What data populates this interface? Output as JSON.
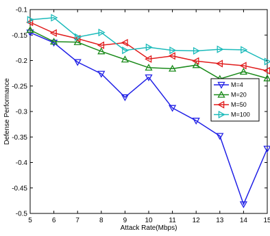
{
  "chart_data": {
    "type": "line",
    "xlabel": "Attack Rate(Mbps)",
    "ylabel": "Defense Performance",
    "xlim": [
      5,
      15
    ],
    "ylim": [
      -0.5,
      -0.1
    ],
    "xticks": [
      5,
      6,
      7,
      8,
      9,
      10,
      11,
      12,
      13,
      14,
      15
    ],
    "yticks": [
      -0.1,
      -0.15,
      -0.2,
      -0.25,
      -0.3,
      -0.35,
      -0.4,
      -0.45,
      -0.5
    ],
    "ytick_labels": [
      "-0.1",
      "-0.15",
      "-0.2",
      "-0.25",
      "-0.3",
      "-0.35",
      "-0.4",
      "-0.45",
      "-0.5"
    ],
    "grid": false,
    "legend_position": "right",
    "x": [
      5,
      6,
      7,
      8,
      9,
      10,
      11,
      12,
      13,
      14,
      15
    ],
    "series": [
      {
        "name": "M=4",
        "color": "#1f1fe6",
        "marker": "triangle-down",
        "values": [
          -0.145,
          -0.165,
          -0.203,
          -0.226,
          -0.272,
          -0.233,
          -0.293,
          -0.318,
          -0.348,
          -0.482,
          -0.373
        ]
      },
      {
        "name": "M=20",
        "color": "#1a8a1a",
        "marker": "triangle-up",
        "values": [
          -0.14,
          -0.163,
          -0.164,
          -0.182,
          -0.198,
          -0.214,
          -0.216,
          -0.209,
          -0.236,
          -0.222,
          -0.235
        ]
      },
      {
        "name": "M=50",
        "color": "#e01a1a",
        "marker": "triangle-left",
        "values": [
          -0.125,
          -0.146,
          -0.157,
          -0.17,
          -0.165,
          -0.197,
          -0.191,
          -0.201,
          -0.206,
          -0.21,
          -0.22
        ]
      },
      {
        "name": "M=100",
        "color": "#1ababa",
        "marker": "triangle-right",
        "values": [
          -0.12,
          -0.116,
          -0.154,
          -0.145,
          -0.18,
          -0.174,
          -0.18,
          -0.181,
          -0.178,
          -0.179,
          -0.202
        ]
      }
    ]
  }
}
